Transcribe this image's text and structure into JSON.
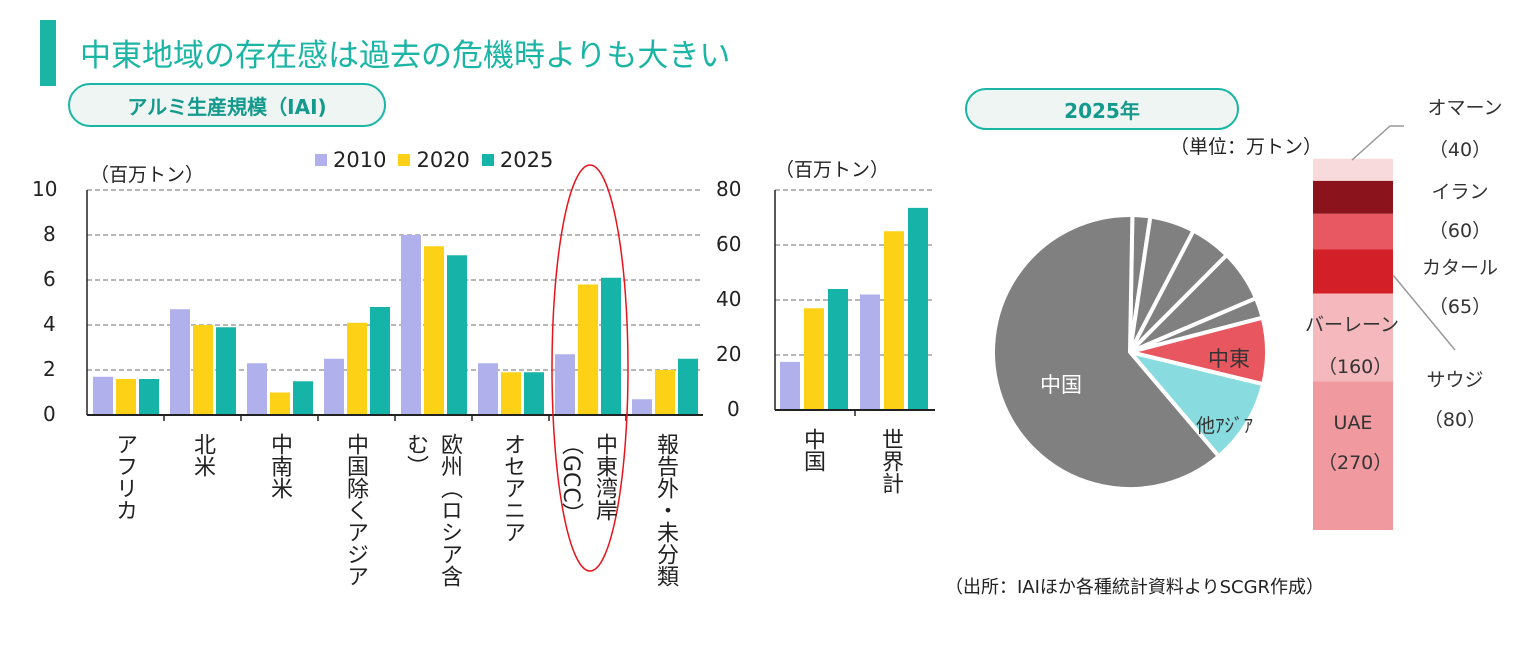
{
  "header": {
    "title": "中東地域の存在感は過去の危機時よりも大きい"
  },
  "pills": {
    "left": "アルミ生産規模（IAI)",
    "right": "2025年"
  },
  "colors": {
    "accent": "#1ab5a5",
    "s2010": "#afb0ec",
    "s2020": "#fdd116",
    "s2025": "#16b4a8",
    "highlight": "#e8141c"
  },
  "chart_data": [
    {
      "type": "bar",
      "title": "アルミ生産規模（IAI)",
      "ylabel": "（百万トン）",
      "ylim": [
        0,
        10
      ],
      "yticks": [
        "0",
        "2",
        "4",
        "6",
        "8",
        "10"
      ],
      "grid": true,
      "legend_position": "top",
      "categories": [
        "アフリカ",
        "北米",
        "中南米",
        "中国除くアジア",
        "欧州（ロシア含む）",
        "オセアニア",
        "中東湾岸（GCC）",
        "報告外・未分類"
      ],
      "series": [
        {
          "name": "2010",
          "values": [
            1.7,
            4.7,
            2.3,
            2.5,
            8.0,
            2.3,
            2.7,
            0.7
          ]
        },
        {
          "name": "2020",
          "values": [
            1.6,
            4.0,
            1.0,
            4.1,
            7.5,
            1.9,
            5.8,
            2.0
          ]
        },
        {
          "name": "2025",
          "values": [
            1.6,
            3.9,
            1.5,
            4.8,
            7.1,
            1.9,
            6.1,
            2.5
          ]
        }
      ],
      "annotation": "highlight ellipse around 中東湾岸（GCC）"
    },
    {
      "type": "bar",
      "ylabel": "（百万トン）",
      "ylim": [
        0,
        80
      ],
      "yticks": [
        "0",
        "20",
        "40",
        "60",
        "80"
      ],
      "grid": true,
      "categories": [
        "中国",
        "世界計"
      ],
      "series": [
        {
          "name": "2010",
          "values": [
            17.5,
            42
          ]
        },
        {
          "name": "2020",
          "values": [
            37,
            65
          ]
        },
        {
          "name": "2025",
          "values": [
            44,
            73.5
          ]
        }
      ]
    },
    {
      "type": "pie",
      "title": "2025年",
      "slices": [
        {
          "label": "",
          "value": 2.1,
          "color": "#808080"
        },
        {
          "label": "",
          "value": 5.3,
          "color": "#808080"
        },
        {
          "label": "",
          "value": 4.8,
          "color": "#808080"
        },
        {
          "label": "",
          "value": 6.1,
          "color": "#808080"
        },
        {
          "label": "",
          "value": 2.4,
          "color": "#808080"
        },
        {
          "label": "中東",
          "value": 7.8,
          "color": "#e8565f"
        },
        {
          "label": "他ｱｼﾞｱ",
          "value": 10.0,
          "color": "#88dbdf"
        },
        {
          "label": "中国",
          "value": 61.5,
          "color": "#808080"
        }
      ]
    },
    {
      "type": "bar",
      "subtype": "stacked",
      "unit": "（単位：万トン）",
      "segments": [
        {
          "name": "UAE",
          "value_label": "（270）",
          "value": 270,
          "color": "#f09aa0"
        },
        {
          "name": "バーレーン",
          "value_label": "（160）",
          "value": 160,
          "color": "#f5b8bd"
        },
        {
          "name": "サウジ",
          "value_label": "（80）",
          "value": 80,
          "color": "#d21f28"
        },
        {
          "name": "カタール",
          "value_label": "（65）",
          "value": 65,
          "color": "#e85862"
        },
        {
          "name": "イラン",
          "value_label": "（60）",
          "value": 60,
          "color": "#8b141c"
        },
        {
          "name": "オマーン",
          "value_label": "（40）",
          "value": 40,
          "color": "#f8dadc"
        }
      ]
    }
  ],
  "source": "（出所：IAIほか各種統計資料よりSCGR作成）"
}
